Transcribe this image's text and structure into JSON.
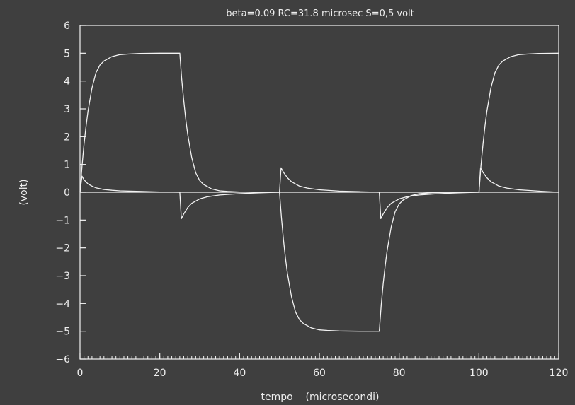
{
  "chart_data": {
    "type": "line",
    "title": "beta=0.09   RC=31.8  microsec  S=0,5  volt",
    "xlabel": "tempo    (microsecondi)",
    "ylabel": "(volt)",
    "xlim": [
      0,
      120
    ],
    "ylim": [
      -6,
      6
    ],
    "xticks": [
      0,
      20,
      40,
      60,
      80,
      100,
      120
    ],
    "yticks": [
      6,
      5,
      4,
      3,
      2,
      1,
      0,
      -1,
      -2,
      -3,
      -4,
      -5,
      -6
    ],
    "grid": false,
    "legend": "none",
    "line_color": "#f2f2f2",
    "series": [
      {
        "x": [
          0,
          0.5,
          1,
          1.5,
          2,
          3,
          4,
          5,
          6,
          8,
          10,
          12,
          15,
          20,
          25,
          25.01,
          25.5,
          26,
          26.5,
          27,
          28,
          29,
          30,
          31,
          33,
          35,
          37,
          40,
          45,
          50,
          50.01,
          50.5,
          51,
          51.5,
          52,
          53,
          54,
          55,
          56,
          58,
          60,
          62,
          65,
          70,
          75,
          75.01,
          75.5,
          76,
          76.5,
          77,
          78,
          79,
          80,
          81,
          83,
          85,
          87,
          90,
          95,
          100,
          100.01,
          100.5,
          101,
          101.5,
          102,
          103,
          104,
          105,
          106,
          108,
          110,
          112,
          115,
          120
        ],
        "y": [
          0,
          0.93,
          1.71,
          2.37,
          2.92,
          3.75,
          4.3,
          4.58,
          4.72,
          4.88,
          4.95,
          4.97,
          4.99,
          5.0,
          5.0,
          5.0,
          4.07,
          3.29,
          2.63,
          2.08,
          1.25,
          0.7,
          0.42,
          0.28,
          0.12,
          0.05,
          0.03,
          0.01,
          0.0,
          0.0,
          0.0,
          -0.93,
          -1.71,
          -2.37,
          -2.92,
          -3.75,
          -4.3,
          -4.58,
          -4.72,
          -4.88,
          -4.95,
          -4.97,
          -4.99,
          -5.0,
          -5.0,
          -5.0,
          -4.07,
          -3.29,
          -2.63,
          -2.08,
          -1.25,
          -0.7,
          -0.42,
          -0.28,
          -0.12,
          -0.05,
          -0.03,
          -0.01,
          0.0,
          0.0,
          0.0,
          0.93,
          1.71,
          2.37,
          2.92,
          3.75,
          4.3,
          4.58,
          4.72,
          4.88,
          4.95,
          4.97,
          4.99,
          5.0
        ]
      },
      {
        "x": [
          0,
          0.5,
          1,
          2,
          3,
          4,
          6,
          8,
          10,
          15,
          20,
          25,
          25.01,
          25.4,
          26,
          27,
          28,
          30,
          32,
          35,
          40,
          45,
          50,
          50.01,
          50.4,
          51,
          52,
          53,
          55,
          57,
          60,
          65,
          70,
          75,
          75.01,
          75.4,
          76,
          77,
          78,
          80,
          82,
          85,
          90,
          95,
          100,
          100.01,
          100.4,
          101,
          102,
          103,
          105,
          107,
          110,
          115,
          120
        ],
        "y": [
          0,
          0.58,
          0.45,
          0.3,
          0.22,
          0.16,
          0.1,
          0.07,
          0.05,
          0.03,
          0.01,
          0.0,
          0.0,
          -0.95,
          -0.78,
          -0.55,
          -0.4,
          -0.24,
          -0.16,
          -0.1,
          -0.05,
          -0.02,
          0.0,
          0.0,
          0.88,
          0.72,
          0.52,
          0.38,
          0.22,
          0.15,
          0.09,
          0.04,
          0.02,
          0.0,
          0.0,
          -0.95,
          -0.78,
          -0.55,
          -0.4,
          -0.24,
          -0.16,
          -0.1,
          -0.05,
          -0.02,
          0.0,
          0.0,
          0.88,
          0.72,
          0.52,
          0.38,
          0.22,
          0.15,
          0.09,
          0.04,
          0.0
        ]
      }
    ]
  }
}
